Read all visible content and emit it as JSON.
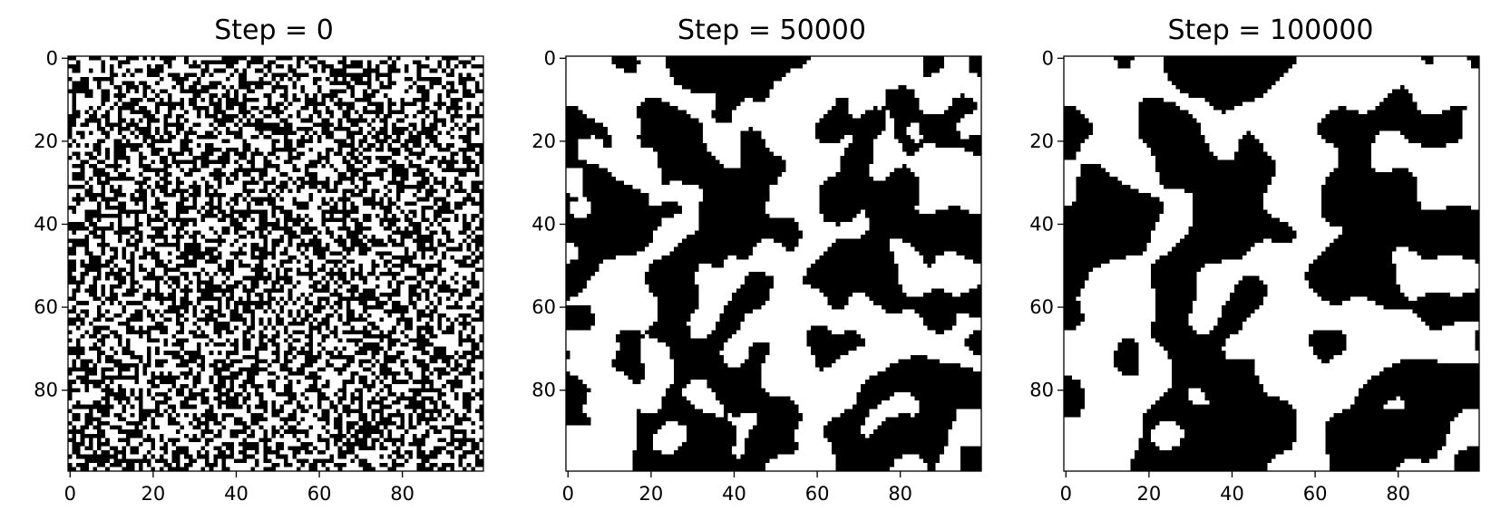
{
  "colors": {
    "spin_down": "#000000",
    "spin_up": "#ffffff",
    "axes": "#000000",
    "background": "#ffffff"
  },
  "chart_data": [
    {
      "type": "heatmap",
      "title": "Step = 0",
      "grid_size": [
        100,
        100
      ],
      "xticks": [
        0,
        20,
        40,
        60,
        80
      ],
      "yticks": [
        0,
        20,
        40,
        60,
        80
      ],
      "xlim": [
        -0.5,
        99.5
      ],
      "ylim": [
        99.5,
        -0.5
      ],
      "grid": false,
      "colormap": "binary (black/white)",
      "pattern": "random uncorrelated",
      "seed": 7,
      "black_fraction": 0.5,
      "blur_passes": 0
    },
    {
      "type": "heatmap",
      "title": "Step = 50000",
      "grid_size": [
        100,
        100
      ],
      "xticks": [
        0,
        20,
        40,
        60,
        80
      ],
      "yticks": [
        0,
        20,
        40,
        60,
        80
      ],
      "xlim": [
        -0.5,
        99.5
      ],
      "ylim": [
        99.5,
        -0.5
      ],
      "grid": false,
      "colormap": "binary (black/white)",
      "pattern": "coarsening domains",
      "seed": 21,
      "black_fraction": 0.5,
      "blur_passes": 3
    },
    {
      "type": "heatmap",
      "title": "Step = 100000",
      "grid_size": [
        100,
        100
      ],
      "xticks": [
        0,
        20,
        40,
        60,
        80
      ],
      "yticks": [
        0,
        20,
        40,
        60,
        80
      ],
      "xlim": [
        -0.5,
        99.5
      ],
      "ylim": [
        99.5,
        -0.5
      ],
      "grid": false,
      "colormap": "binary (black/white)",
      "pattern": "large coarsened domains",
      "seed": 21,
      "black_fraction": 0.5,
      "blur_passes": 6
    }
  ]
}
